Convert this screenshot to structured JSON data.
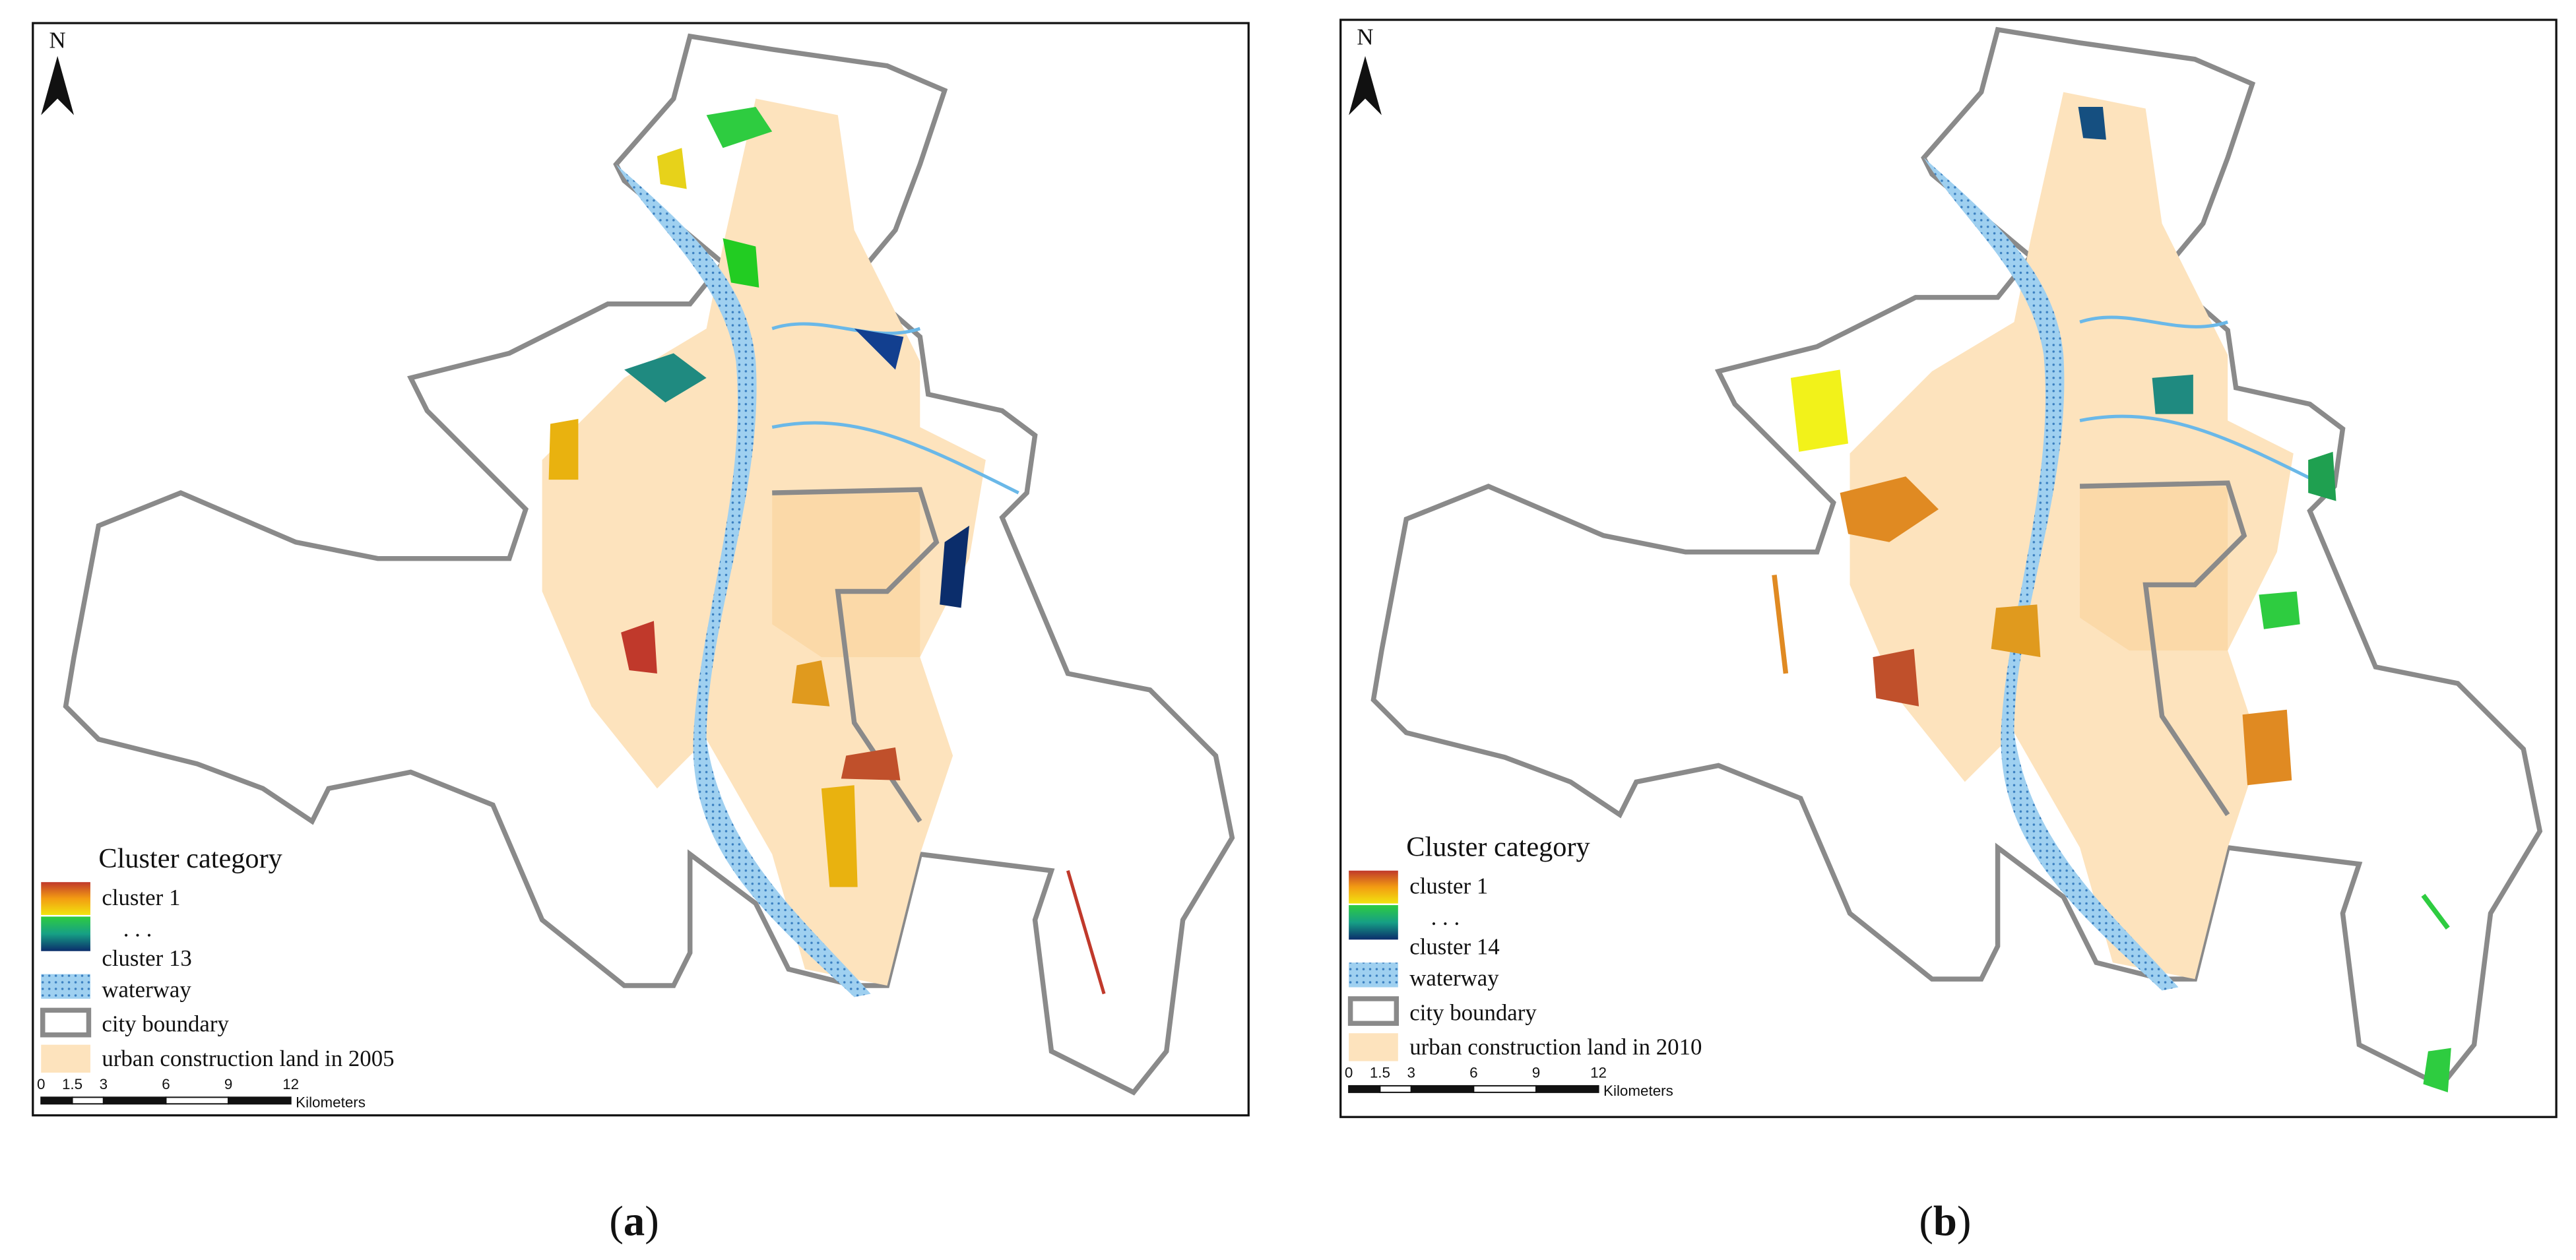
{
  "panels": [
    {
      "north": "N",
      "legend": {
        "title": "Cluster category",
        "items": [
          "cluster 1",
          ". . .",
          "cluster 13",
          "waterway",
          "city boundary",
          "urban construction land in 2005"
        ]
      },
      "scale": {
        "ticks": [
          0,
          1.5,
          3,
          6,
          9,
          12
        ],
        "unit": "Kilometers"
      },
      "caption": [
        "(",
        "a",
        ")"
      ]
    },
    {
      "north": "N",
      "legend": {
        "title": "Cluster category",
        "items": [
          "cluster 1",
          ". . .",
          "cluster 14",
          "waterway",
          "city boundary",
          "urban construction land in 2010"
        ]
      },
      "scale": {
        "ticks": [
          0,
          1.5,
          3,
          6,
          9,
          12
        ],
        "unit": "Kilometers"
      },
      "caption": [
        "(",
        "b",
        ")"
      ]
    }
  ]
}
